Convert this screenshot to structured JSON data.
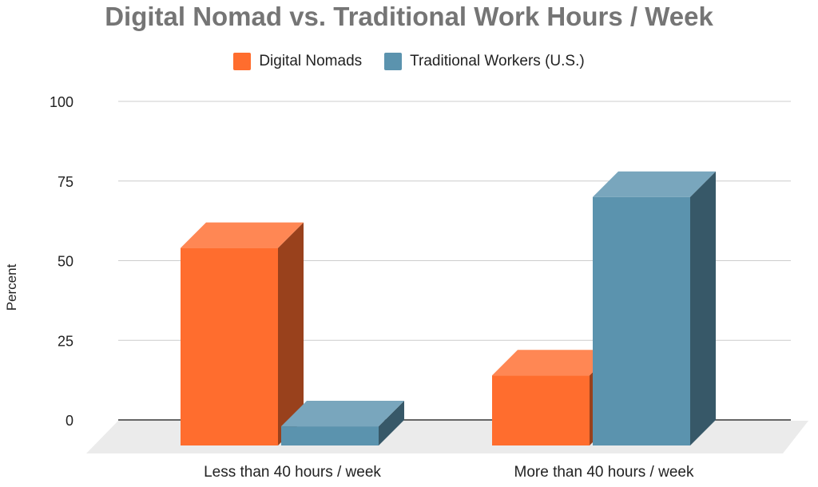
{
  "chart_data": {
    "type": "bar",
    "title": "Digital Nomad vs. Traditional Work Hours / Week",
    "xlabel": "",
    "ylabel": "Percent",
    "ylim": [
      0,
      100
    ],
    "yticks": [
      "0",
      "25",
      "50",
      "75",
      "100"
    ],
    "categories": [
      "Less than 40 hours / week",
      "More than 40 hours / week"
    ],
    "series": [
      {
        "name": "Digital Nomads",
        "values": [
          62,
          22
        ],
        "color": "#ff6d2e"
      },
      {
        "name": "Traditional Workers (U.S.)",
        "values": [
          6,
          78
        ],
        "color": "#5b93ae"
      }
    ],
    "grid": true,
    "legend_position": "top",
    "style": "3d"
  }
}
